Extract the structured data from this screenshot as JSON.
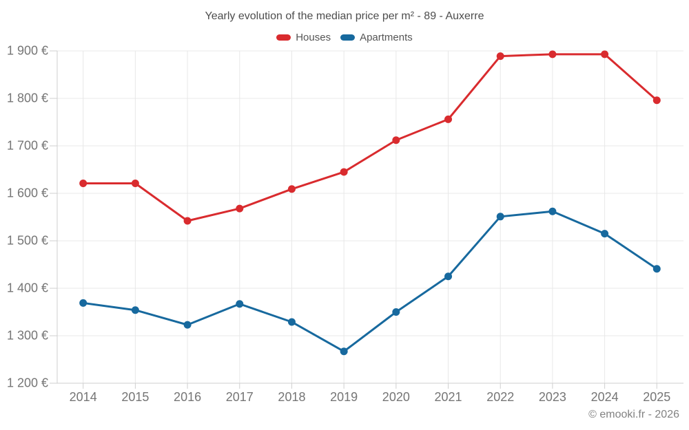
{
  "title": "Yearly evolution of the median price per m² - 89 - Auxerre",
  "footer": "© emooki.fr - 2026",
  "colors": {
    "houses": "#d92b2e",
    "apartments": "#17699e",
    "grid": "#e8e8e8",
    "axis": "#cfcfcf",
    "tick_text": "#757575",
    "title_text": "#4d4d4d"
  },
  "chart_data": {
    "type": "line",
    "title": "Yearly evolution of the median price per m² - 89 - Auxerre",
    "categories": [
      "2014",
      "2015",
      "2016",
      "2017",
      "2018",
      "2019",
      "2020",
      "2021",
      "2022",
      "2023",
      "2024",
      "2025"
    ],
    "series": [
      {
        "name": "Houses",
        "color": "#d92b2e",
        "values": [
          1621,
          1621,
          1542,
          1568,
          1609,
          1645,
          1712,
          1756,
          1889,
          1893,
          1893,
          1796
        ]
      },
      {
        "name": "Apartments",
        "color": "#17699e",
        "values": [
          1369,
          1354,
          1323,
          1367,
          1329,
          1267,
          1350,
          1425,
          1551,
          1562,
          1515,
          1441
        ]
      }
    ],
    "xlabel": "",
    "ylabel": "",
    "ylim": [
      1200,
      1900
    ],
    "yticks": [
      1200,
      1300,
      1400,
      1500,
      1600,
      1700,
      1800,
      1900
    ],
    "ytick_labels": [
      "1 200 €",
      "1 300 €",
      "1 400 €",
      "1 500 €",
      "1 600 €",
      "1 700 €",
      "1 800 €",
      "1 900 €"
    ],
    "grid": true,
    "legend_position": "top-center"
  }
}
